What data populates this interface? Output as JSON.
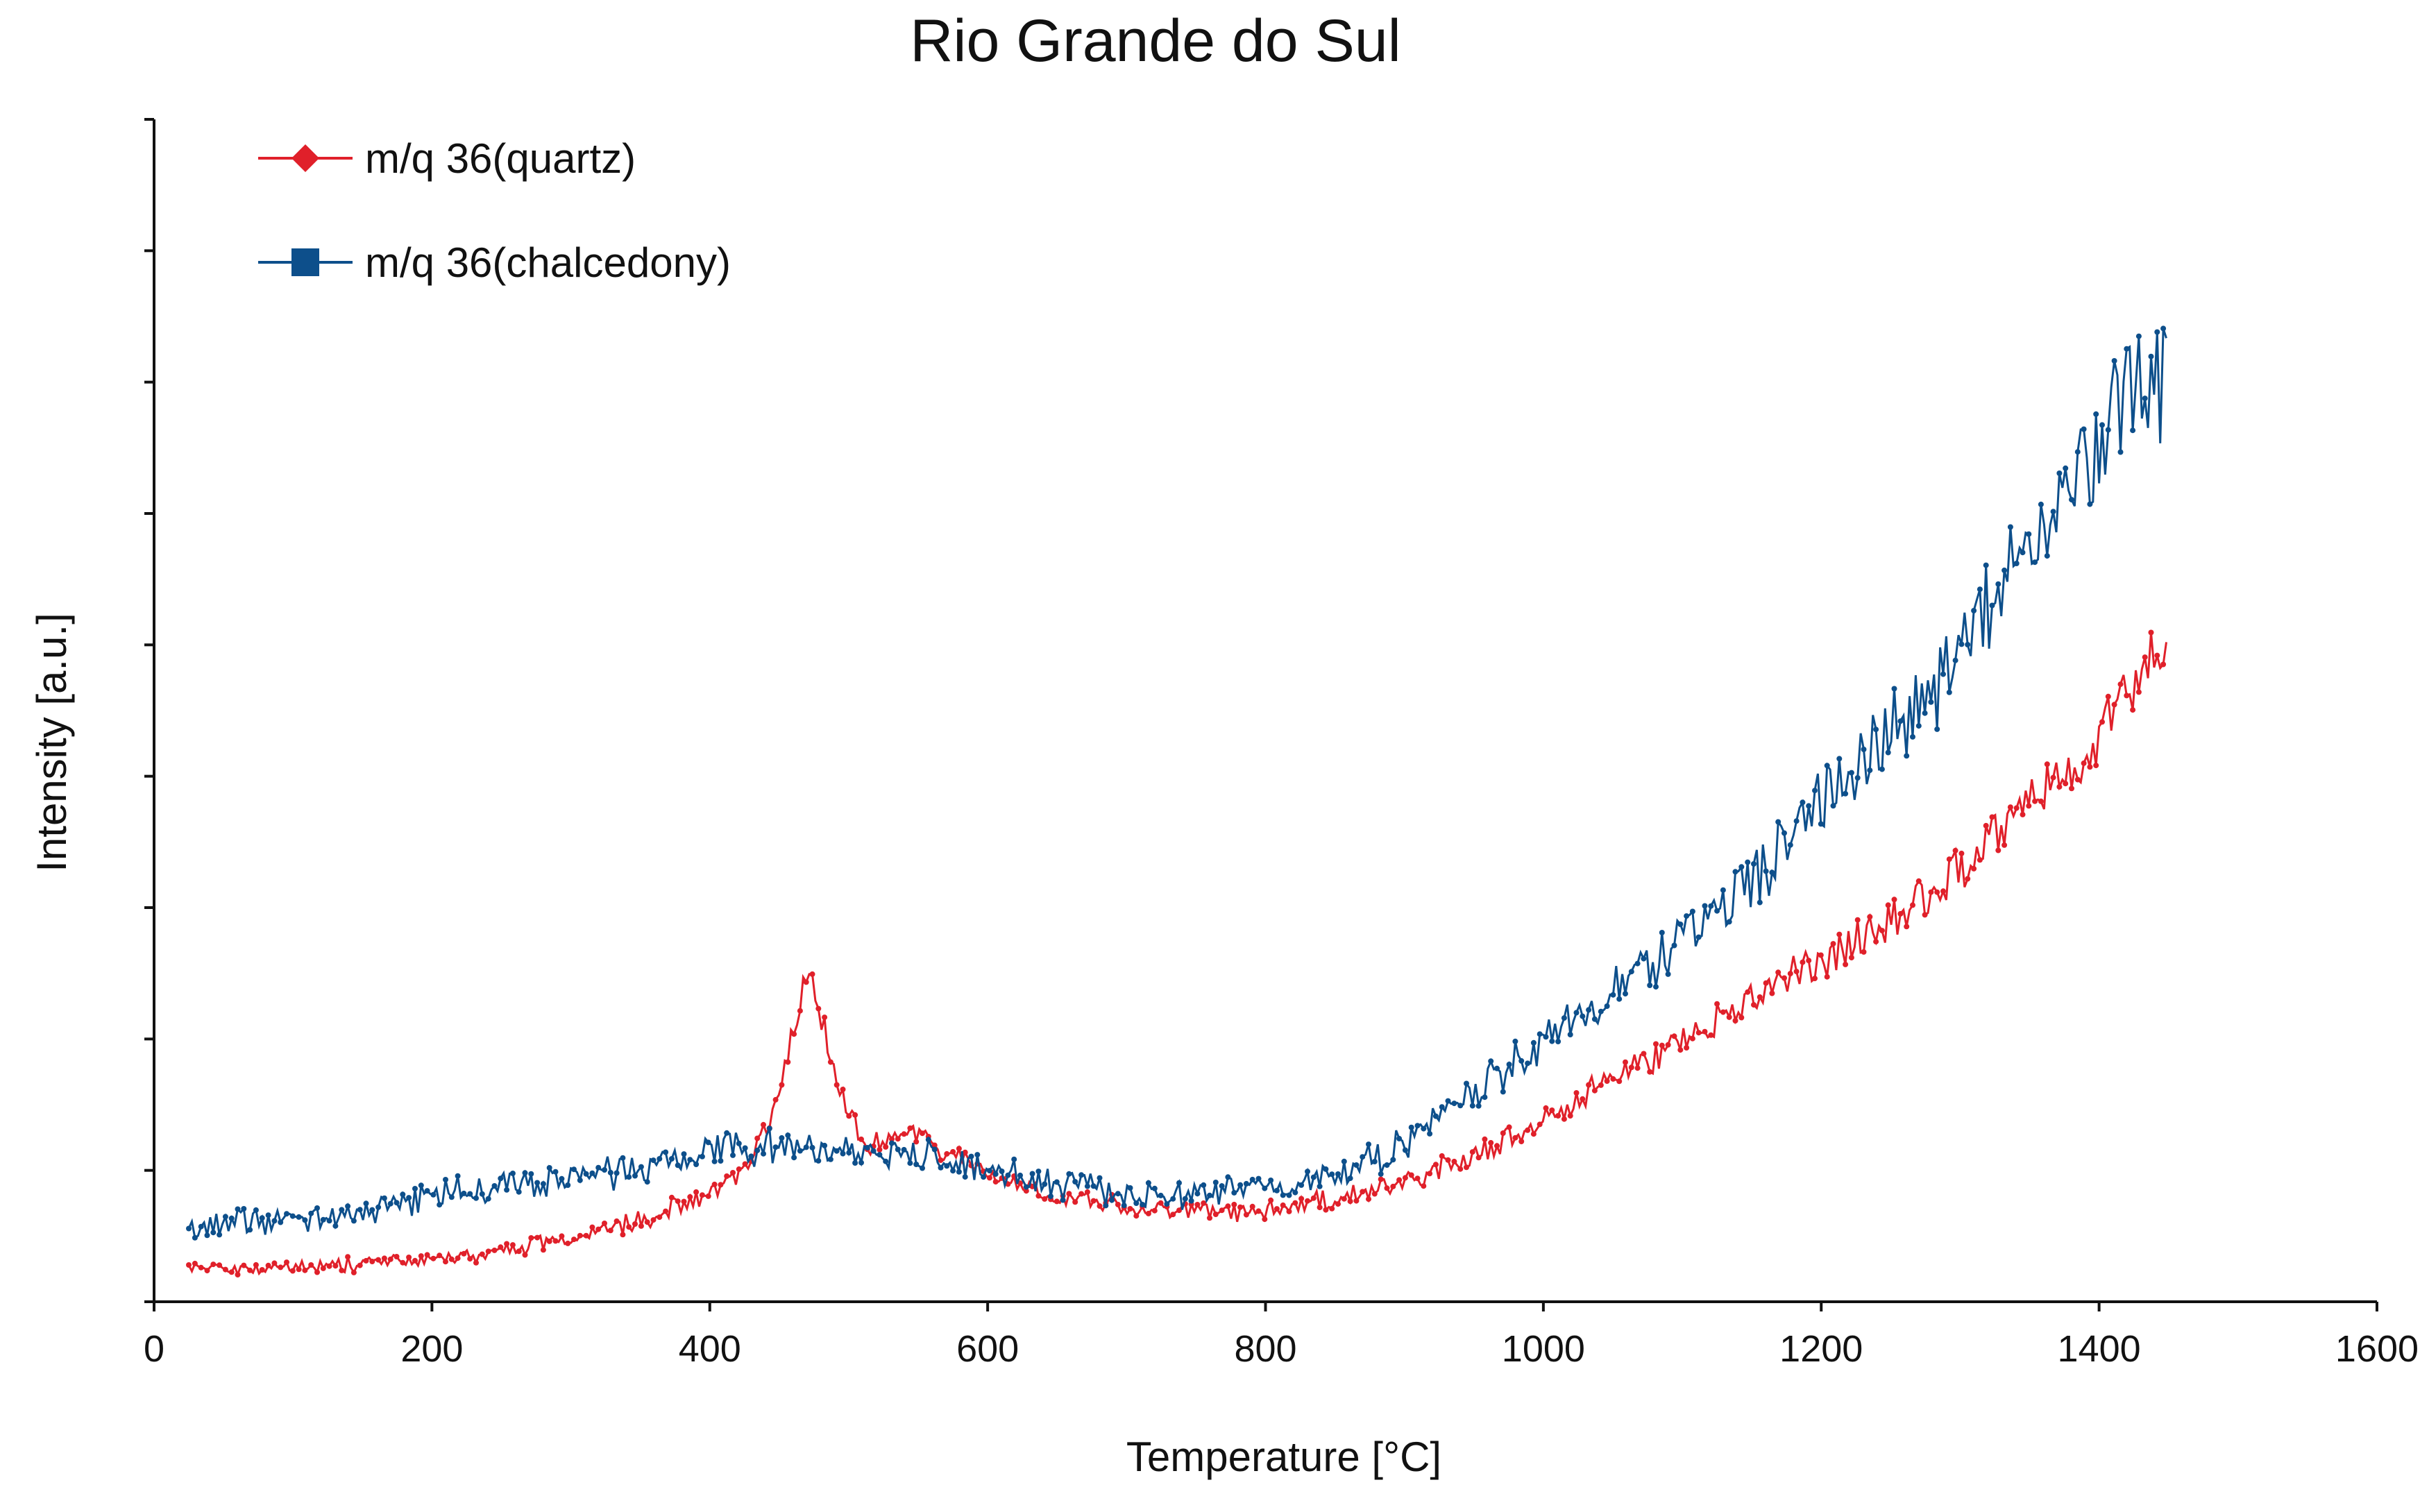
{
  "chart_data": {
    "type": "line",
    "title": "Rio Grande do Sul",
    "xlabel": "Temperature [°C]",
    "ylabel": "Intensity [a.u.]",
    "xlim": [
      0,
      1600
    ],
    "ylim": [
      0,
      9
    ],
    "x_ticks": [
      "0",
      "200",
      "400",
      "600",
      "800",
      "1000",
      "1200",
      "1400",
      "1600"
    ],
    "y_ticks_count": 10,
    "y_tick_labels_shown": false,
    "grid": false,
    "legend_position": "top-left",
    "series": [
      {
        "name": "m/q 36(quartz)",
        "color": "#e0202a",
        "marker": "diamond",
        "anchors": [
          [
            25,
            0.27
          ],
          [
            60,
            0.25
          ],
          [
            100,
            0.26
          ],
          [
            150,
            0.28
          ],
          [
            200,
            0.32
          ],
          [
            250,
            0.38
          ],
          [
            300,
            0.48
          ],
          [
            350,
            0.62
          ],
          [
            400,
            0.82
          ],
          [
            430,
            1.05
          ],
          [
            450,
            1.6
          ],
          [
            465,
            2.3
          ],
          [
            472,
            2.55
          ],
          [
            480,
            2.2
          ],
          [
            495,
            1.55
          ],
          [
            510,
            1.2
          ],
          [
            530,
            1.25
          ],
          [
            550,
            1.3
          ],
          [
            570,
            1.15
          ],
          [
            600,
            0.98
          ],
          [
            630,
            0.85
          ],
          [
            660,
            0.8
          ],
          [
            700,
            0.72
          ],
          [
            750,
            0.68
          ],
          [
            800,
            0.7
          ],
          [
            850,
            0.78
          ],
          [
            900,
            0.9
          ],
          [
            950,
            1.1
          ],
          [
            1000,
            1.4
          ],
          [
            1050,
            1.7
          ],
          [
            1100,
            2.0
          ],
          [
            1150,
            2.3
          ],
          [
            1200,
            2.6
          ],
          [
            1250,
            2.9
          ],
          [
            1300,
            3.3
          ],
          [
            1350,
            3.85
          ],
          [
            1400,
            4.3
          ],
          [
            1430,
            4.8
          ],
          [
            1450,
            5.1
          ]
        ]
      },
      {
        "name": "m/q 36(chalcedony)",
        "color": "#0d4f8b",
        "marker": "square",
        "anchors": [
          [
            25,
            0.55
          ],
          [
            60,
            0.62
          ],
          [
            100,
            0.6
          ],
          [
            150,
            0.68
          ],
          [
            200,
            0.8
          ],
          [
            250,
            0.9
          ],
          [
            300,
            0.92
          ],
          [
            350,
            1.02
          ],
          [
            400,
            1.15
          ],
          [
            450,
            1.18
          ],
          [
            500,
            1.15
          ],
          [
            550,
            1.12
          ],
          [
            600,
            1.0
          ],
          [
            650,
            0.9
          ],
          [
            700,
            0.83
          ],
          [
            750,
            0.82
          ],
          [
            800,
            0.85
          ],
          [
            850,
            0.95
          ],
          [
            900,
            1.2
          ],
          [
            950,
            1.6
          ],
          [
            1000,
            1.95
          ],
          [
            1050,
            2.35
          ],
          [
            1100,
            2.75
          ],
          [
            1150,
            3.2
          ],
          [
            1200,
            3.8
          ],
          [
            1250,
            4.35
          ],
          [
            1300,
            4.9
          ],
          [
            1350,
            5.8
          ],
          [
            1400,
            6.5
          ],
          [
            1430,
            7.1
          ],
          [
            1450,
            7.0
          ]
        ]
      }
    ]
  }
}
